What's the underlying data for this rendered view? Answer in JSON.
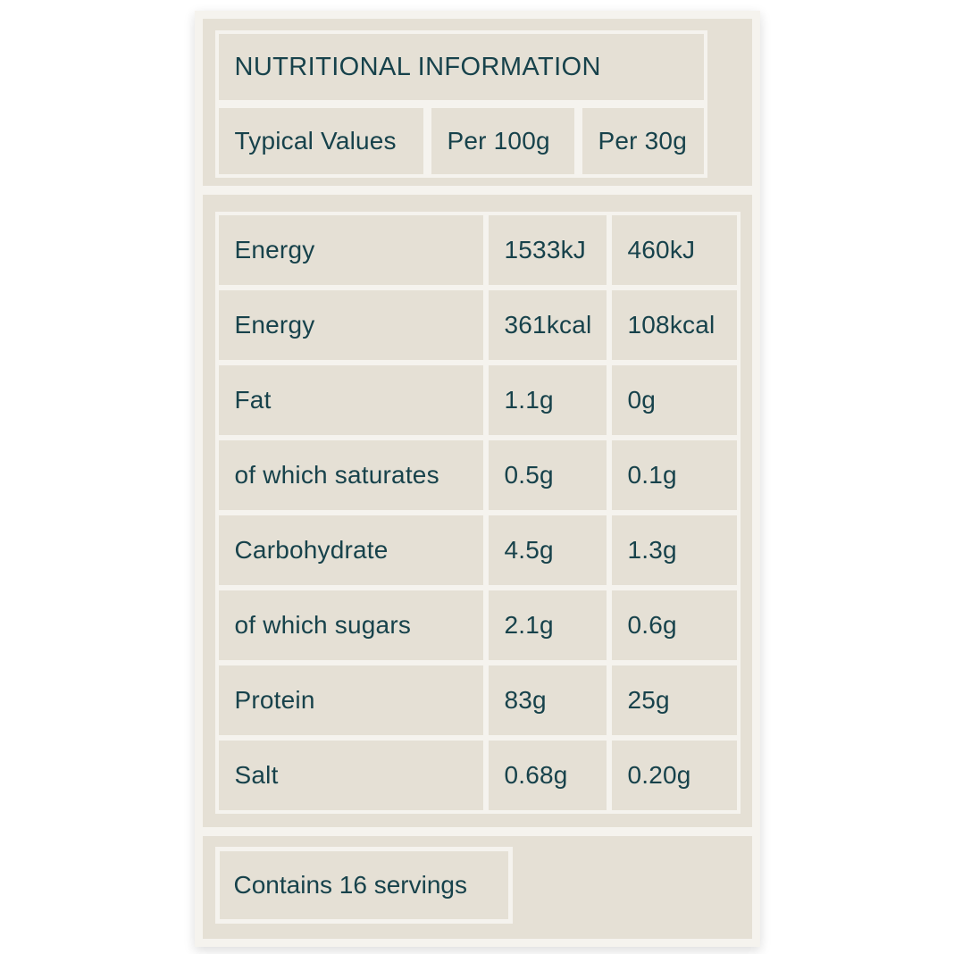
{
  "colors": {
    "page_background": "#ffffff",
    "panel_beige": "#e5e0d5",
    "grid_line": "#f5f3ee",
    "text_teal": "#17424b"
  },
  "header": {
    "title": "NUTRITIONAL INFORMATION",
    "columns": [
      "Typical Values",
      "Per 100g",
      "Per 30g"
    ]
  },
  "table": {
    "rows": [
      {
        "label": "Energy",
        "per_100g": "1533kJ",
        "per_30g": "460kJ"
      },
      {
        "label": "Energy",
        "per_100g": "361kcal",
        "per_30g": "108kcal"
      },
      {
        "label": "Fat",
        "per_100g": "1.1g",
        "per_30g": "0g"
      },
      {
        "label": "of which saturates",
        "per_100g": "0.5g",
        "per_30g": "0.1g"
      },
      {
        "label": "Carbohydrate",
        "per_100g": "4.5g",
        "per_30g": "1.3g"
      },
      {
        "label": "of which sugars",
        "per_100g": "2.1g",
        "per_30g": "0.6g"
      },
      {
        "label": "Protein",
        "per_100g": "83g",
        "per_30g": "25g"
      },
      {
        "label": "Salt",
        "per_100g": "0.68g",
        "per_30g": "0.20g"
      }
    ]
  },
  "footer": {
    "servings": "Contains 16 servings"
  }
}
